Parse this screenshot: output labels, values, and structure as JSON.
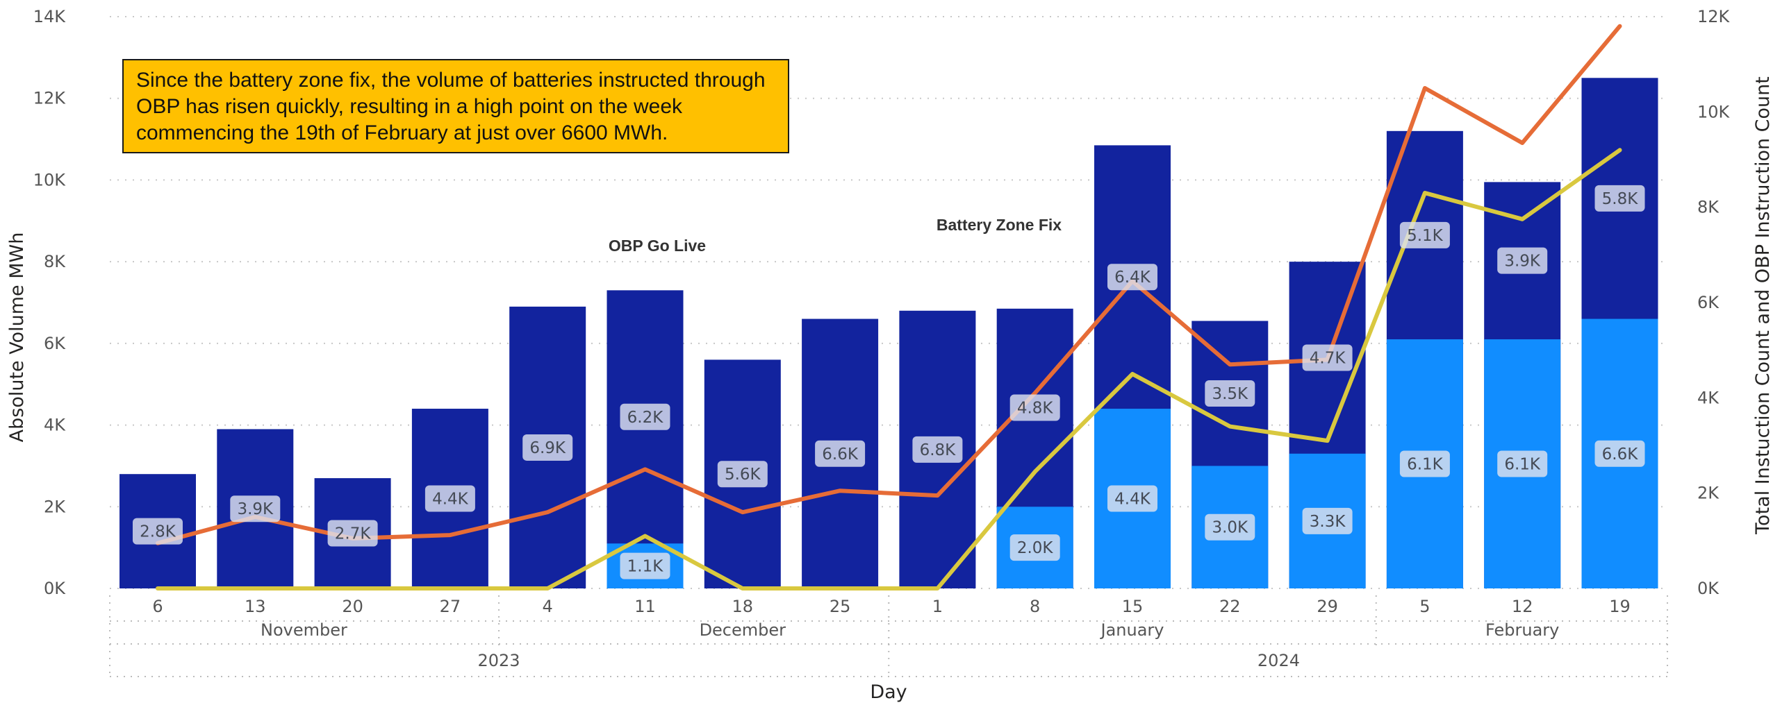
{
  "callout_text": "Since the battery zone fix, the volume of batteries instructed through OBP has risen quickly, resulting in a high point on the week commencing the 19th of February at just over 6600 MWh.",
  "chart_data": {
    "type": "bar",
    "subtype": "overlapping bars with lines on secondary axis",
    "xlabel": "Day",
    "ylabel": "Absolute Volume MWh",
    "y2label": "Total Instuction Count and OBP Instruction Count",
    "ylim": [
      0,
      14000
    ],
    "y2lim": [
      0,
      12000
    ],
    "yticks": [
      "0K",
      "2K",
      "4K",
      "6K",
      "8K",
      "10K",
      "12K",
      "14K"
    ],
    "y2ticks": [
      "0K",
      "2K",
      "4K",
      "6K",
      "8K",
      "10K",
      "12K"
    ],
    "grid": true,
    "categories": [
      "6",
      "13",
      "20",
      "27",
      "4",
      "11",
      "18",
      "25",
      "1",
      "8",
      "15",
      "22",
      "29",
      "5",
      "12",
      "19"
    ],
    "months": [
      {
        "label": "November",
        "from": 0,
        "to": 3
      },
      {
        "label": "December",
        "from": 4,
        "to": 8
      },
      {
        "label": "January",
        "from": 8,
        "to": 12
      },
      {
        "label": "February",
        "from": 13,
        "to": 15
      }
    ],
    "years": [
      {
        "label": "2023",
        "from": 0,
        "to": 7
      },
      {
        "label": "2024",
        "from": 8,
        "to": 15
      }
    ],
    "bar_series": [
      {
        "values": [
          2800,
          3900,
          2700,
          4400,
          6900,
          7300,
          5600,
          6600,
          6800,
          6850,
          10850,
          6550,
          8000,
          11200,
          9950,
          12500
        ],
        "labels": [
          "2.8K",
          "3.9K",
          "2.7K",
          "4.4K",
          "6.9K",
          "6.2K",
          "5.6K",
          "6.6K",
          "6.8K",
          "4.8K",
          "6.4K",
          "3.5K",
          "4.7K",
          "5.1K",
          "3.9K",
          "5.8K"
        ],
        "color": "#12239e"
      },
      {
        "values": [
          0,
          0,
          0,
          0,
          0,
          1100,
          0,
          0,
          0,
          2000,
          4400,
          3000,
          3300,
          6100,
          6100,
          6600
        ],
        "labels": [
          "",
          "",
          "",
          "",
          "",
          "1.1K",
          "",
          "",
          "",
          "2.0K",
          "4.4K",
          "3.0K",
          "3.3K",
          "6.1K",
          "6.1K",
          "6.6K"
        ],
        "color": "#118dff"
      }
    ],
    "bar_label_values": [
      [
        2800,
        3900,
        2700,
        4400,
        6900,
        6200,
        5600,
        6600,
        6800,
        4800,
        6400,
        3500,
        4700,
        5100,
        3900,
        5800
      ],
      [
        0,
        0,
        0,
        0,
        0,
        1100,
        0,
        0,
        0,
        2000,
        4400,
        3000,
        3300,
        6100,
        6100,
        6600
      ]
    ],
    "line_series": [
      {
        "axis": "y2",
        "color": "#e66c37",
        "values": [
          950,
          1500,
          1050,
          1120,
          1600,
          2500,
          1600,
          2050,
          1950,
          4100,
          6450,
          4700,
          4800,
          10500,
          9350,
          11800
        ]
      },
      {
        "axis": "y2",
        "color": "#d9c83f",
        "values": [
          0,
          0,
          0,
          0,
          0,
          1100,
          0,
          0,
          0,
          2450,
          4500,
          3400,
          3100,
          8300,
          7750,
          9200
        ]
      }
    ],
    "annotations": [
      "OBP Go Live",
      "Battery Zone Fix"
    ]
  }
}
